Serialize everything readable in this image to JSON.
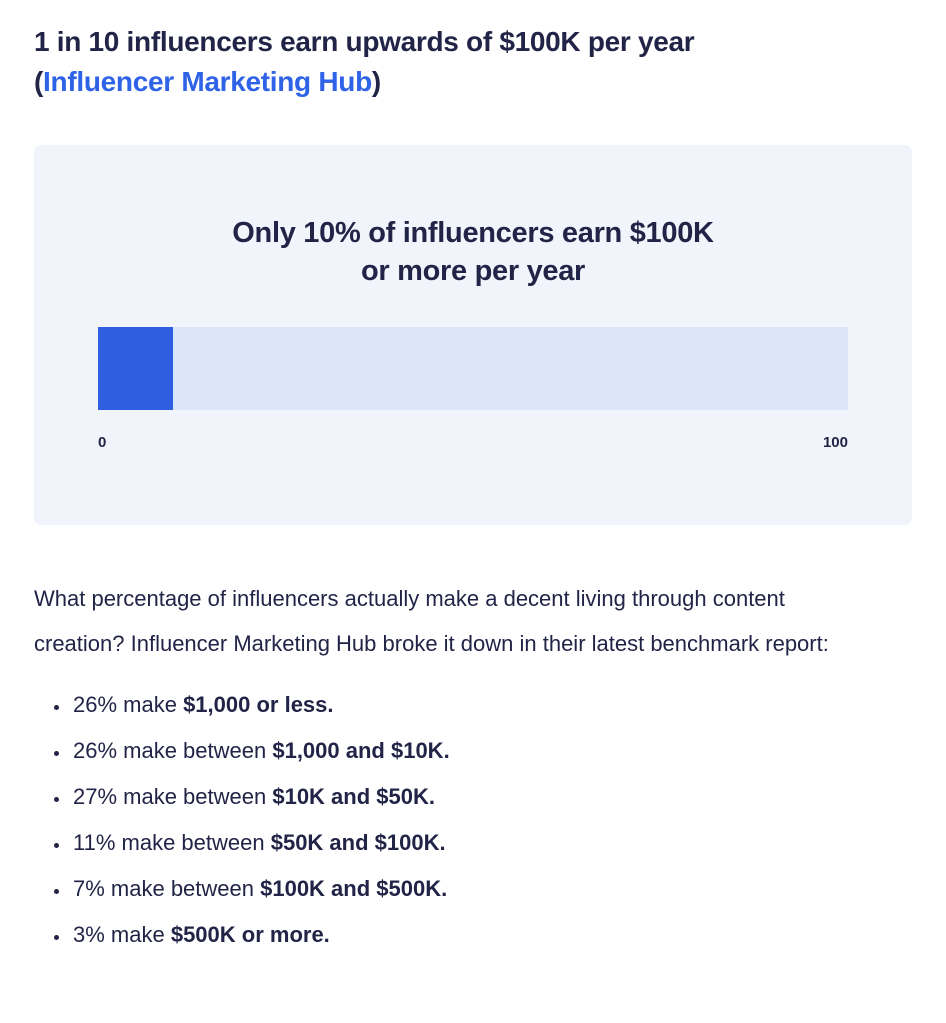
{
  "colors": {
    "text": "#222447",
    "link": "#2e63e7",
    "bar_fill": "#2f5ee0",
    "bar_track": "#dce6f9",
    "card_background": "#f1f5fb"
  },
  "heading": {
    "line1": "1 in 10 influencers earn upwards of $100K per year",
    "paren_open": "(",
    "link_text": "Influencer Marketing Hub",
    "paren_close": ")"
  },
  "chart_data": {
    "type": "bar",
    "orientation": "horizontal",
    "title": "Only 10% of influencers earn $100K or more per year",
    "title_lines": [
      "Only 10% of influencers earn $100K",
      "or more per year"
    ],
    "values": [
      10
    ],
    "xlim": [
      0,
      100
    ],
    "tick_labels": [
      "0",
      "100"
    ],
    "grid": false,
    "legend": false,
    "bar_color": "#2f5ee0",
    "track_color": "#dce6f9",
    "card_background": "#f1f5fb"
  },
  "paragraph": "What percentage of influencers actually make a decent living through content creation? Influencer Marketing Hub broke it down in their latest benchmark report:",
  "list": {
    "items": [
      {
        "normal": "26% make ",
        "bold": "$1,000 or less."
      },
      {
        "normal": "26% make between ",
        "bold": "$1,000 and $10K."
      },
      {
        "normal": "27% make between ",
        "bold": "$10K and $50K."
      },
      {
        "normal": "11% make between ",
        "bold": "$50K and $100K."
      },
      {
        "normal": "7% make between ",
        "bold": "$100K and $500K."
      },
      {
        "normal": "3% make ",
        "bold": "$500K or more."
      }
    ]
  }
}
